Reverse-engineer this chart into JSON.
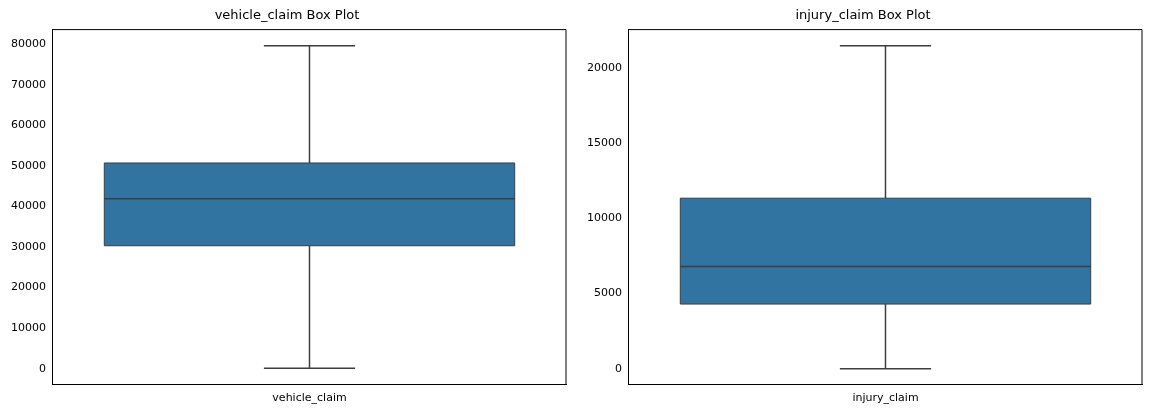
{
  "chart_data": [
    {
      "type": "box",
      "title": "vehicle_claim Box Plot",
      "categories": [
        "vehicle_claim"
      ],
      "color": "#3274a1",
      "boxes": [
        {
          "low": 100,
          "q1": 30300,
          "median": 41900,
          "q3": 50700,
          "high": 79600
        }
      ],
      "ylim": [
        -3980,
        83580
      ],
      "yticks": [
        0,
        10000,
        20000,
        30000,
        40000,
        50000,
        60000,
        70000,
        80000
      ],
      "grid": false,
      "legend": false
    },
    {
      "type": "box",
      "title": "injury_claim Box Plot",
      "categories": [
        "injury_claim"
      ],
      "color": "#3274a1",
      "boxes": [
        {
          "low": 0,
          "q1": 4300,
          "median": 6800,
          "q3": 11350,
          "high": 21500
        }
      ],
      "ylim": [
        -1075,
        22575
      ],
      "yticks": [
        0,
        5000,
        10000,
        15000,
        20000
      ],
      "grid": false,
      "legend": false
    }
  ]
}
